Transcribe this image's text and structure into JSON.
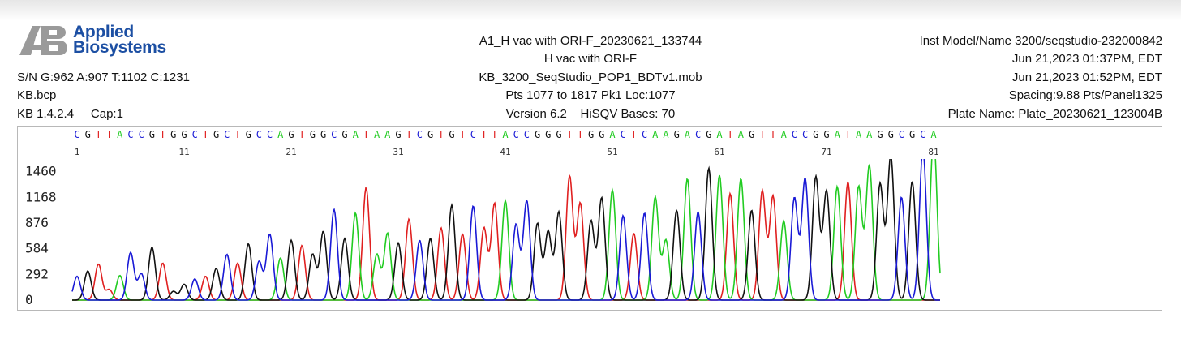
{
  "header": {
    "logo_line1": "Applied",
    "logo_line2": "Biosystems",
    "sample_name": "A1_H vac with ORI-F_20230621_133744",
    "sample_desc": "H vac with ORI-F",
    "mobility_file": "KB_3200_SeqStudio_POP1_BDTv1.mob",
    "points": "Pts 1077 to 1817 Pk1 Loc:1077",
    "version": "Version 6.2",
    "hisqv": "HiSQV Bases: 70",
    "inst_model": "Inst Model/Name 3200/seqstudio-232000842",
    "run_start": "Jun 21,2023 01:37PM, EDT",
    "run_end": "Jun 21,2023 01:52PM, EDT",
    "spacing": "Spacing:9.88  Pts/Panel1325",
    "plate": "Plate Name: Plate_20230621_123004B",
    "signal": "S/N G:962 A:907 T:1102 C:1231",
    "basecaller": "KB.bcp",
    "kb_version": "KB 1.4.2.4",
    "capillary": "Cap:1"
  },
  "chart_data": {
    "type": "line",
    "title": "",
    "xlabel": "",
    "ylabel": "",
    "ylim": [
      0,
      1650
    ],
    "yticks": [
      0,
      292,
      584,
      876,
      1168,
      1460
    ],
    "base_ticks": [
      1,
      11,
      21,
      31,
      41,
      51,
      61,
      71,
      81
    ],
    "sequence": "CGTTACCGTGGCTGCTGCCAGTGGCGATAAGTCGTGTCTTACCGGGTTGGACTCAAGACGATAGTTACCGGATAAGGCGCA",
    "base_colors": {
      "A": "#22cc22",
      "C": "#1a1ad6",
      "G": "#111111",
      "T": "#e02020"
    },
    "peak_heights": [
      270,
      330,
      410,
      120,
      280,
      540,
      300,
      600,
      420,
      100,
      180,
      240,
      270,
      360,
      520,
      420,
      640,
      440,
      750,
      480,
      680,
      620,
      520,
      780,
      1030,
      700,
      990,
      1280,
      520,
      760,
      650,
      920,
      680,
      700,
      820,
      1080,
      750,
      1070,
      820,
      1100,
      1130,
      860,
      1130,
      870,
      780,
      1000,
      1410,
      1100,
      900,
      1160,
      1250,
      960,
      760,
      990,
      1170,
      680,
      1020,
      1380,
      1000,
      1500,
      1420,
      1210,
      1380,
      1020,
      1240,
      1180,
      900,
      1160,
      1380,
      1400,
      1240,
      1290,
      1340,
      1290,
      1530,
      1320,
      1640,
      1170,
      1350,
      1720,
      1860
    ]
  }
}
